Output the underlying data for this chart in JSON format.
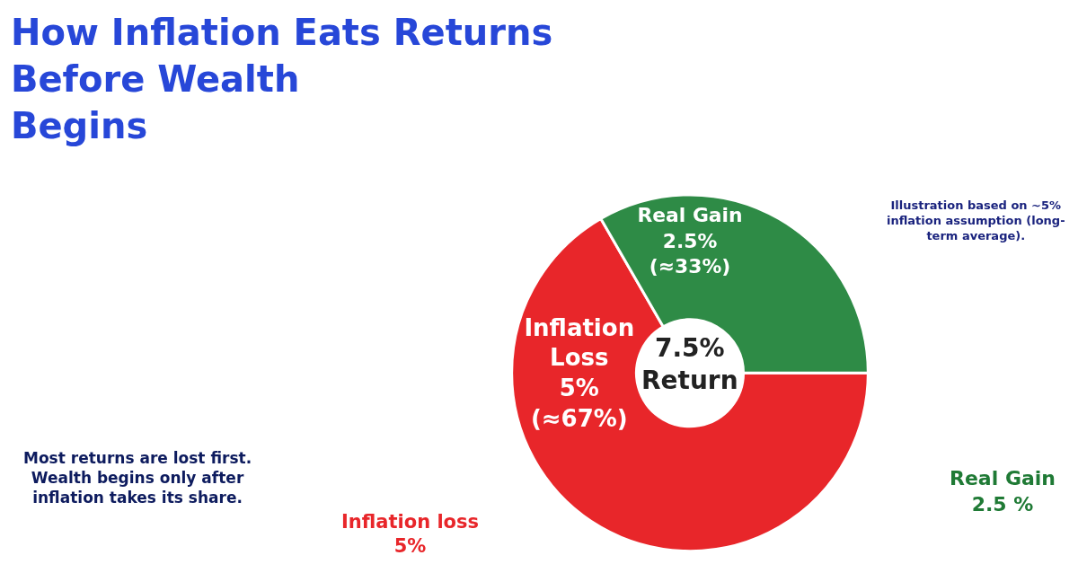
{
  "chart_data": {
    "type": "donut",
    "title": "How Inflation Eats Returns\nBefore Wealth\nBegins",
    "categories": [
      "Inflation\nLoss",
      "Real Gain"
    ],
    "values": [
      5,
      2.5
    ],
    "value_labels": [
      "5%\n(≈67%)",
      "2.5%\n(≈33%)"
    ],
    "colors": [
      "#e8262a",
      "#2e8b46"
    ],
    "legend": false,
    "annotations": [
      "7.5%\nReturn",
      "Illustration based on ~5%\ninflation assumption (long-\nterm average).",
      "Most returns are lost first.\nWealth begins only after\ninflation takes its share.",
      "Inflation loss\n5%",
      "Real Gain\n2.5 %"
    ]
  }
}
